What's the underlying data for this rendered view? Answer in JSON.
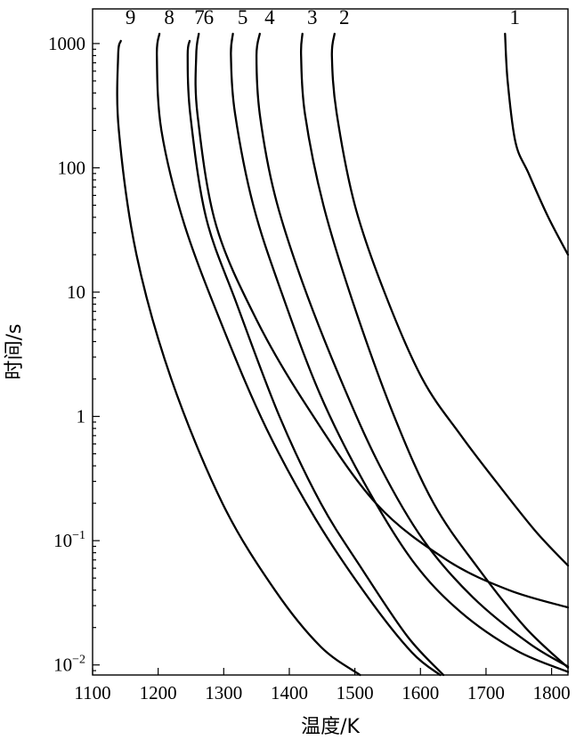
{
  "chart_data": {
    "type": "line",
    "title": "",
    "xlabel": "温度/K",
    "ylabel": "时间/s",
    "xlim": [
      1100,
      1825
    ],
    "ylim": [
      0.0083,
      1900
    ],
    "yscale": "log",
    "grid": false,
    "legend": "none",
    "x_ticks": [
      {
        "value": 1100,
        "label": "1100"
      },
      {
        "value": 1200,
        "label": "1200"
      },
      {
        "value": 1300,
        "label": "1300"
      },
      {
        "value": 1400,
        "label": "1400"
      },
      {
        "value": 1500,
        "label": "1500"
      },
      {
        "value": 1600,
        "label": "1600"
      },
      {
        "value": 1700,
        "label": "1700"
      },
      {
        "value": 1800,
        "label": "1800"
      }
    ],
    "y_ticks": [
      {
        "value": 1000,
        "label": "1000"
      },
      {
        "value": 100,
        "label": "100"
      },
      {
        "value": 10,
        "label": "10"
      },
      {
        "value": 1,
        "label": "1"
      },
      {
        "value": 0.1,
        "label": "10",
        "sup": "−1"
      },
      {
        "value": 0.01,
        "label": "10",
        "sup": "−2"
      }
    ],
    "series": [
      {
        "label": "1",
        "points": [
          [
            1729,
            1200
          ],
          [
            1733,
            500
          ],
          [
            1745,
            160
          ],
          [
            1765,
            90
          ],
          [
            1795,
            40
          ],
          [
            1825,
            20
          ]
        ]
      },
      {
        "label": "2",
        "points": [
          [
            1469,
            1200
          ],
          [
            1465,
            800
          ],
          [
            1472,
            280
          ],
          [
            1500,
            50
          ],
          [
            1545,
            10
          ],
          [
            1603,
            2
          ],
          [
            1662,
            0.7
          ],
          [
            1715,
            0.3
          ],
          [
            1775,
            0.12
          ],
          [
            1825,
            0.063
          ]
        ]
      },
      {
        "label": "3",
        "points": [
          [
            1420,
            1200
          ],
          [
            1418,
            800
          ],
          [
            1424,
            270
          ],
          [
            1452,
            50
          ],
          [
            1498,
            8
          ],
          [
            1560,
            1
          ],
          [
            1620,
            0.2
          ],
          [
            1688,
            0.06
          ],
          [
            1760,
            0.02
          ],
          [
            1825,
            0.0095
          ]
        ]
      },
      {
        "label": "4",
        "points": [
          [
            1355,
            1200
          ],
          [
            1350,
            800
          ],
          [
            1355,
            270
          ],
          [
            1378,
            60
          ],
          [
            1420,
            12
          ],
          [
            1478,
            2
          ],
          [
            1538,
            0.4
          ],
          [
            1605,
            0.1
          ],
          [
            1680,
            0.035
          ],
          [
            1765,
            0.015
          ],
          [
            1825,
            0.0097
          ]
        ]
      },
      {
        "label": "5",
        "points": [
          [
            1314,
            1200
          ],
          [
            1311,
            800
          ],
          [
            1317,
            280
          ],
          [
            1345,
            50
          ],
          [
            1388,
            10
          ],
          [
            1447,
            1.5
          ],
          [
            1513,
            0.3
          ],
          [
            1587,
            0.07
          ],
          [
            1660,
            0.027
          ],
          [
            1747,
            0.013
          ],
          [
            1825,
            0.0088
          ]
        ]
      },
      {
        "label": "6",
        "points": [
          [
            1262,
            1200
          ],
          [
            1258,
            800
          ],
          [
            1260,
            270
          ],
          [
            1288,
            35
          ],
          [
            1350,
            6
          ],
          [
            1427,
            1.2
          ],
          [
            1532,
            0.2
          ],
          [
            1640,
            0.07
          ],
          [
            1735,
            0.04
          ],
          [
            1825,
            0.029
          ]
        ]
      },
      {
        "label": "7",
        "points": [
          [
            1248,
            1050
          ],
          [
            1245,
            800
          ],
          [
            1249,
            270
          ],
          [
            1273,
            40
          ],
          [
            1320,
            8
          ],
          [
            1385,
            1
          ],
          [
            1448,
            0.2
          ],
          [
            1510,
            0.06
          ],
          [
            1580,
            0.017
          ],
          [
            1635,
            0.0083
          ]
        ]
      },
      {
        "label": "8",
        "points": [
          [
            1202,
            1200
          ],
          [
            1198,
            800
          ],
          [
            1205,
            200
          ],
          [
            1240,
            35
          ],
          [
            1300,
            5
          ],
          [
            1365,
            0.8
          ],
          [
            1440,
            0.15
          ],
          [
            1520,
            0.035
          ],
          [
            1587,
            0.0126
          ],
          [
            1630,
            0.0083
          ]
        ]
      },
      {
        "label": "9",
        "points": [
          [
            1143,
            1050
          ],
          [
            1139,
            800
          ],
          [
            1140,
            200
          ],
          [
            1167,
            20
          ],
          [
            1220,
            2
          ],
          [
            1298,
            0.2
          ],
          [
            1378,
            0.04
          ],
          [
            1448,
            0.014
          ],
          [
            1508,
            0.0083
          ]
        ]
      }
    ]
  }
}
